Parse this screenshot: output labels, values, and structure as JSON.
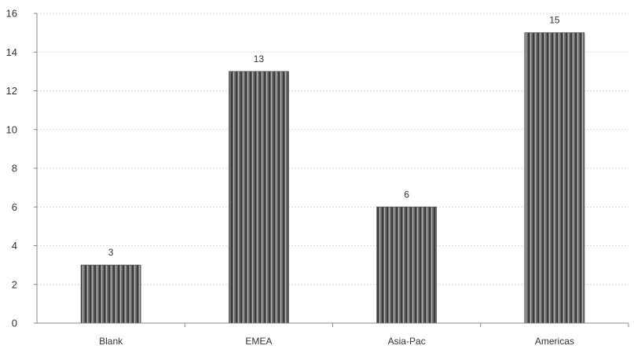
{
  "chart_data": {
    "type": "bar",
    "categories": [
      "Blank",
      "EMEA",
      "Asia-Pac",
      "Americas"
    ],
    "values": [
      3,
      13,
      6,
      15
    ],
    "data_labels": [
      "3",
      "13",
      "6",
      "15"
    ],
    "ylim": [
      0,
      16
    ],
    "yticks": [
      "0",
      "2",
      "4",
      "6",
      "8",
      "10",
      "12",
      "14",
      "16"
    ],
    "grid": true,
    "legend": "none",
    "colors": {
      "bar_fill": "#6e6e6e",
      "bar_stripe_dark": "#3c3c3c",
      "bar_stripe_light": "#b5b5b5",
      "grid": "#d8d8d8",
      "axis": "#888888"
    }
  }
}
